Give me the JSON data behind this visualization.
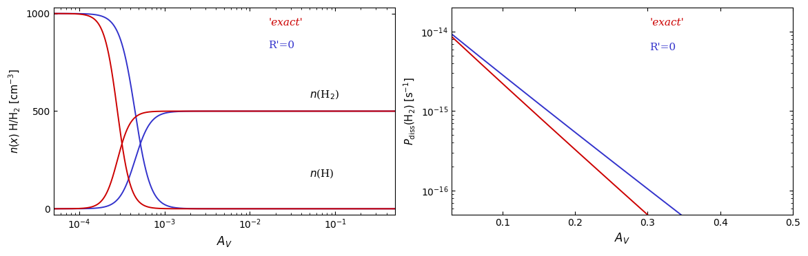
{
  "left_xlim": [
    5e-05,
    0.5
  ],
  "left_ylim": [
    -30,
    1030
  ],
  "left_xlabel": "A_V",
  "left_yticks": [
    0,
    500,
    1000
  ],
  "left_legend_exact": "'exact'",
  "left_legend_rp0": "R'=0",
  "right_xlim": [
    0.03,
    0.5
  ],
  "right_ylim": [
    5e-17,
    2e-14
  ],
  "right_xlabel": "A_V",
  "right_xticks": [
    0.1,
    0.2,
    0.3,
    0.4,
    0.5
  ],
  "right_legend_exact": "'exact'",
  "right_legend_rp0": "R'=0",
  "color_exact": "#cc0000",
  "color_rp0": "#3333cc",
  "linewidth": 1.4,
  "bg_color": "#ffffff"
}
